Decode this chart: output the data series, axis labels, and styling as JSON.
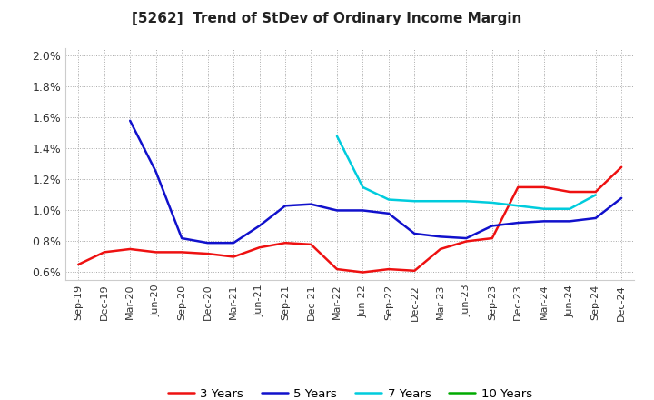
{
  "title": "[5262]  Trend of StDev of Ordinary Income Margin",
  "background_color": "#ffffff",
  "plot_background_color": "#ffffff",
  "grid_color": "#bbbbbb",
  "ylim": [
    0.0055,
    0.0205
  ],
  "yticks": [
    0.006,
    0.008,
    0.01,
    0.012,
    0.014,
    0.016,
    0.018,
    0.02
  ],
  "ytick_labels": [
    "0.6%",
    "0.8%",
    "1.0%",
    "1.2%",
    "1.4%",
    "1.6%",
    "1.8%",
    "2.0%"
  ],
  "x_labels": [
    "Sep-19",
    "Dec-19",
    "Mar-20",
    "Jun-20",
    "Sep-20",
    "Dec-20",
    "Mar-21",
    "Jun-21",
    "Sep-21",
    "Dec-21",
    "Mar-22",
    "Jun-22",
    "Sep-22",
    "Dec-22",
    "Mar-23",
    "Jun-23",
    "Sep-23",
    "Dec-23",
    "Mar-24",
    "Jun-24",
    "Sep-24",
    "Dec-24"
  ],
  "series": {
    "3 Years": {
      "color": "#ee1111",
      "data": [
        0.0065,
        0.0073,
        0.0075,
        0.0073,
        0.0073,
        0.0072,
        0.007,
        0.0076,
        0.0079,
        0.0078,
        0.0062,
        0.006,
        0.0062,
        0.0061,
        0.0075,
        0.008,
        0.0082,
        0.0115,
        0.0115,
        0.0112,
        0.0112,
        0.0128
      ]
    },
    "5 Years": {
      "color": "#1111cc",
      "data": [
        null,
        null,
        0.0158,
        0.0125,
        0.0082,
        0.0079,
        0.0079,
        0.009,
        0.0103,
        0.0104,
        0.01,
        0.01,
        0.0098,
        0.0085,
        0.0083,
        0.0082,
        0.009,
        0.0092,
        0.0093,
        0.0093,
        0.0095,
        0.0108
      ]
    },
    "7 Years": {
      "color": "#00ccdd",
      "data": [
        null,
        null,
        null,
        null,
        null,
        null,
        null,
        null,
        null,
        null,
        0.0148,
        0.0115,
        0.0107,
        0.0106,
        0.0106,
        0.0106,
        0.0105,
        0.0103,
        0.0101,
        0.0101,
        0.011,
        null
      ]
    },
    "10 Years": {
      "color": "#00aa00",
      "data": [
        null,
        null,
        null,
        null,
        null,
        null,
        null,
        null,
        null,
        null,
        null,
        null,
        null,
        null,
        null,
        null,
        null,
        null,
        null,
        null,
        null,
        null
      ]
    }
  },
  "legend_labels": [
    "3 Years",
    "5 Years",
    "7 Years",
    "10 Years"
  ]
}
